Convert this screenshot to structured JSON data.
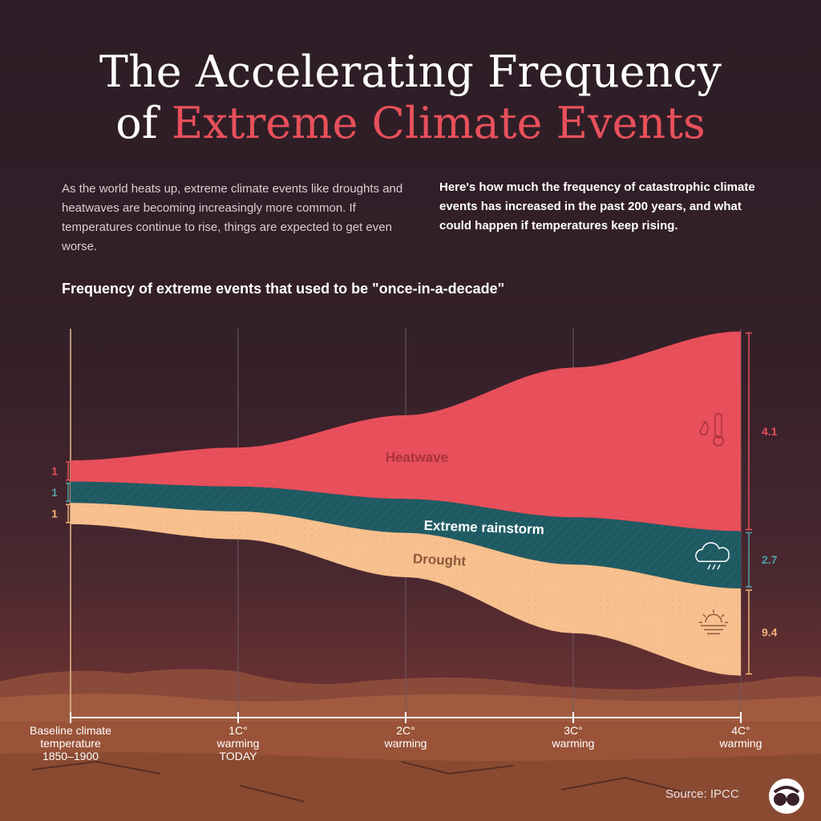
{
  "header": {
    "title_line1": "The Accelerating Frequency",
    "title_of": "of",
    "title_line2": "Extreme Climate Events"
  },
  "intro": {
    "left": "As the world heats up, extreme climate events like droughts and heatwaves are becoming increasingly more common. If temperatures continue to rise, things are expected to get even worse.",
    "right": "Here's how much the frequency of catastrophic climate events has increased in the past 200 years, and what could happen if temperatures keep rising."
  },
  "chart_subtitle": "Frequency of extreme events that used to be \"once-in-a-decade\"",
  "chart_data": {
    "type": "area",
    "x": [
      0,
      1,
      2,
      3,
      4
    ],
    "x_tick_labels": [
      [
        "Baseline climate",
        "temperature",
        "1850–1900"
      ],
      [
        "1C°",
        "warming",
        "TODAY"
      ],
      [
        "2C°",
        "warming"
      ],
      [
        "3C°",
        "warming"
      ],
      [
        "4C°",
        "warming"
      ]
    ],
    "series": [
      {
        "name": "Drought",
        "start": 1,
        "end": 4.1,
        "color": "#f7c08e",
        "icon": "sun-haze-icon"
      },
      {
        "name": "Extreme rainstorm",
        "start": 1,
        "end": 2.7,
        "color": "#1f5a62",
        "icon": "rain-cloud-icon"
      },
      {
        "name": "Heatwave",
        "start": 1,
        "end": 9.4,
        "color": "#e8505b",
        "icon": "thermometer-icon"
      }
    ],
    "start_labels": [
      "1",
      "1",
      "1"
    ],
    "end_labels": [
      "4.1",
      "2.7",
      "9.4"
    ],
    "label_colors": {
      "heatwave": "#e8505b",
      "rainstorm": "#4fa3a5",
      "drought": "#f2b27a"
    }
  },
  "footer": {
    "source": "Source:  IPCC",
    "logo_icon": "visual-capitalist-logo-icon"
  }
}
